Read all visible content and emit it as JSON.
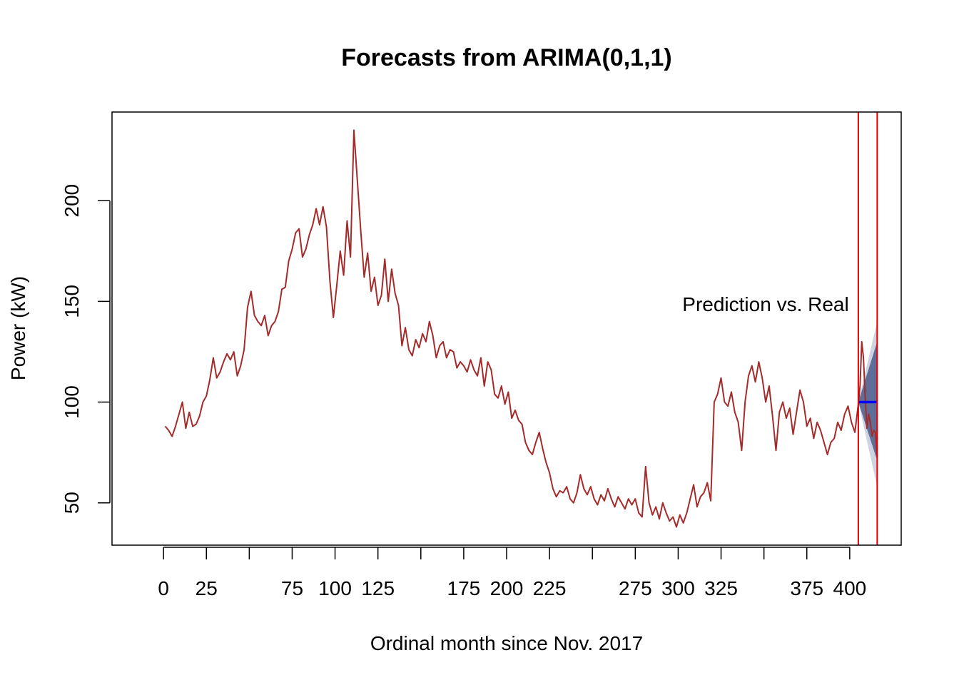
{
  "chart_data": {
    "type": "line",
    "title": "Forecasts from ARIMA(0,1,1)",
    "xlabel": "Ordinal month since Nov. 2017",
    "ylabel": "Power (kW)",
    "xlim": [
      -30,
      430
    ],
    "ylim": [
      29,
      244
    ],
    "x_ticks": [
      0,
      25,
      50,
      75,
      100,
      125,
      150,
      175,
      200,
      225,
      250,
      275,
      300,
      325,
      350,
      375,
      400
    ],
    "x_tick_labels": [
      "0",
      "25",
      "",
      "75",
      "100",
      "125",
      "",
      "175",
      "200",
      "225",
      "",
      "275",
      "300",
      "325",
      "",
      "375",
      "400"
    ],
    "y_ticks": [
      50,
      100,
      150,
      200
    ],
    "y_tick_labels": [
      "50",
      "100",
      "150",
      "200"
    ],
    "grid": false,
    "annotation": "Prediction vs. Real",
    "colors": {
      "series": "#a52a2a",
      "forecast_mean": "#0000ff",
      "interval_80": "#5f6d99",
      "interval_95": "#cfd3e0",
      "vertical_lines": "#e00000"
    },
    "series": [
      {
        "values": [
          [
            1,
            88
          ],
          [
            3,
            86
          ],
          [
            5,
            83
          ],
          [
            7,
            88
          ],
          [
            9,
            94
          ],
          [
            11,
            100
          ],
          [
            13,
            87
          ],
          [
            15,
            95
          ],
          [
            17,
            88
          ],
          [
            19,
            89
          ],
          [
            21,
            93
          ],
          [
            23,
            100
          ],
          [
            25,
            103
          ],
          [
            27,
            111
          ],
          [
            29,
            122
          ],
          [
            31,
            112
          ],
          [
            33,
            115
          ],
          [
            35,
            120
          ],
          [
            37,
            124
          ],
          [
            39,
            121
          ],
          [
            41,
            125
          ],
          [
            43,
            113
          ],
          [
            45,
            118
          ],
          [
            47,
            126
          ],
          [
            49,
            147
          ],
          [
            51,
            155
          ],
          [
            53,
            143
          ],
          [
            55,
            140
          ],
          [
            57,
            138
          ],
          [
            59,
            143
          ],
          [
            61,
            133
          ],
          [
            63,
            138
          ],
          [
            65,
            140
          ],
          [
            67,
            145
          ],
          [
            69,
            156
          ],
          [
            71,
            157
          ],
          [
            73,
            170
          ],
          [
            75,
            176
          ],
          [
            77,
            184
          ],
          [
            79,
            186
          ],
          [
            81,
            172
          ],
          [
            83,
            176
          ],
          [
            85,
            183
          ],
          [
            87,
            188
          ],
          [
            89,
            196
          ],
          [
            91,
            188
          ],
          [
            93,
            197
          ],
          [
            95,
            187
          ],
          [
            97,
            160
          ],
          [
            99,
            142
          ],
          [
            101,
            158
          ],
          [
            103,
            175
          ],
          [
            105,
            163
          ],
          [
            107,
            190
          ],
          [
            109,
            172
          ],
          [
            111,
            235
          ],
          [
            113,
            210
          ],
          [
            115,
            185
          ],
          [
            117,
            162
          ],
          [
            119,
            174
          ],
          [
            121,
            155
          ],
          [
            123,
            162
          ],
          [
            125,
            148
          ],
          [
            127,
            153
          ],
          [
            129,
            171
          ],
          [
            131,
            150
          ],
          [
            133,
            166
          ],
          [
            135,
            154
          ],
          [
            137,
            148
          ],
          [
            139,
            128
          ],
          [
            141,
            137
          ],
          [
            143,
            126
          ],
          [
            145,
            123
          ],
          [
            147,
            131
          ],
          [
            149,
            127
          ],
          [
            151,
            134
          ],
          [
            153,
            130
          ],
          [
            155,
            140
          ],
          [
            157,
            133
          ],
          [
            159,
            122
          ],
          [
            161,
            128
          ],
          [
            163,
            130
          ],
          [
            165,
            122
          ],
          [
            167,
            126
          ],
          [
            169,
            125
          ],
          [
            171,
            117
          ],
          [
            173,
            120
          ],
          [
            175,
            118
          ],
          [
            177,
            115
          ],
          [
            179,
            121
          ],
          [
            181,
            116
          ],
          [
            183,
            113
          ],
          [
            185,
            122
          ],
          [
            187,
            108
          ],
          [
            189,
            120
          ],
          [
            191,
            116
          ],
          [
            193,
            104
          ],
          [
            195,
            102
          ],
          [
            197,
            108
          ],
          [
            199,
            99
          ],
          [
            201,
            105
          ],
          [
            203,
            92
          ],
          [
            205,
            96
          ],
          [
            207,
            91
          ],
          [
            209,
            89
          ],
          [
            211,
            80
          ],
          [
            213,
            76
          ],
          [
            215,
            74
          ],
          [
            217,
            80
          ],
          [
            219,
            85
          ],
          [
            221,
            77
          ],
          [
            223,
            70
          ],
          [
            225,
            65
          ],
          [
            227,
            57
          ],
          [
            229,
            53
          ],
          [
            231,
            56
          ],
          [
            233,
            55
          ],
          [
            235,
            58
          ],
          [
            237,
            52
          ],
          [
            239,
            50
          ],
          [
            241,
            55
          ],
          [
            243,
            64
          ],
          [
            245,
            57
          ],
          [
            247,
            54
          ],
          [
            249,
            58
          ],
          [
            251,
            52
          ],
          [
            253,
            49
          ],
          [
            255,
            54
          ],
          [
            257,
            51
          ],
          [
            259,
            57
          ],
          [
            261,
            52
          ],
          [
            263,
            48
          ],
          [
            265,
            53
          ],
          [
            267,
            50
          ],
          [
            269,
            47
          ],
          [
            271,
            52
          ],
          [
            273,
            49
          ],
          [
            275,
            52
          ],
          [
            277,
            45
          ],
          [
            279,
            43
          ],
          [
            281,
            68
          ],
          [
            283,
            50
          ],
          [
            285,
            44
          ],
          [
            287,
            48
          ],
          [
            289,
            42
          ],
          [
            291,
            50
          ],
          [
            293,
            45
          ],
          [
            295,
            41
          ],
          [
            297,
            43
          ],
          [
            299,
            38
          ],
          [
            301,
            44
          ],
          [
            303,
            40
          ],
          [
            305,
            45
          ],
          [
            307,
            52
          ],
          [
            309,
            59
          ],
          [
            311,
            48
          ],
          [
            313,
            53
          ],
          [
            315,
            55
          ],
          [
            317,
            60
          ],
          [
            319,
            51
          ],
          [
            321,
            100
          ],
          [
            323,
            104
          ],
          [
            325,
            112
          ],
          [
            327,
            100
          ],
          [
            329,
            98
          ],
          [
            331,
            105
          ],
          [
            333,
            95
          ],
          [
            335,
            90
          ],
          [
            337,
            76
          ],
          [
            339,
            100
          ],
          [
            341,
            113
          ],
          [
            343,
            118
          ],
          [
            345,
            110
          ],
          [
            347,
            120
          ],
          [
            349,
            112
          ],
          [
            351,
            100
          ],
          [
            353,
            108
          ],
          [
            355,
            93
          ],
          [
            357,
            76
          ],
          [
            359,
            95
          ],
          [
            361,
            100
          ],
          [
            363,
            92
          ],
          [
            365,
            97
          ],
          [
            367,
            84
          ],
          [
            369,
            95
          ],
          [
            371,
            106
          ],
          [
            373,
            100
          ],
          [
            375,
            88
          ],
          [
            377,
            92
          ],
          [
            379,
            82
          ],
          [
            381,
            90
          ],
          [
            383,
            86
          ],
          [
            385,
            80
          ],
          [
            387,
            74
          ],
          [
            389,
            80
          ],
          [
            391,
            82
          ],
          [
            393,
            90
          ],
          [
            395,
            86
          ],
          [
            397,
            94
          ],
          [
            399,
            98
          ],
          [
            401,
            90
          ],
          [
            403,
            85
          ],
          [
            405,
            99
          ]
        ]
      },
      {
        "values": [
          [
            405,
            99
          ],
          [
            406,
            108
          ],
          [
            407,
            130
          ],
          [
            408,
            122
          ],
          [
            409,
            103
          ],
          [
            410,
            87
          ],
          [
            411,
            94
          ],
          [
            412,
            90
          ],
          [
            413,
            83
          ],
          [
            414,
            86
          ],
          [
            415,
            85
          ],
          [
            416,
            73
          ]
        ]
      }
    ],
    "forecast": {
      "x_start": 405,
      "x_end": 416,
      "mean": 100,
      "lo80_end": 71,
      "hi80_end": 130,
      "lo95_end": 58,
      "hi95_end": 140
    },
    "vertical_lines_x": [
      405,
      416
    ]
  }
}
